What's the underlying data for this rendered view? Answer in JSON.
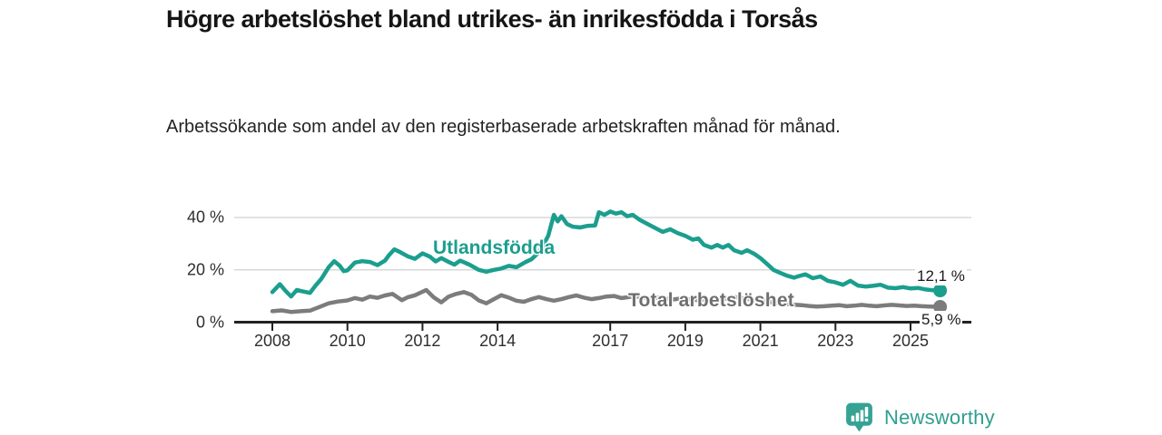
{
  "title": "Högre arbetslöshet bland utrikes- än inrikesfödda i Torsås",
  "subtitle": "Arbetssökande som andel av den registerbaserade arbetskraften månad för månad.",
  "branding": {
    "logo_text": "Newsworthy",
    "brand_color": "#2f9e90"
  },
  "chart_data": {
    "type": "line",
    "title": "Högre arbetslöshet bland utrikes- än inrikesfödda i Torsås",
    "subtitle": "Arbetssökande som andel av den registerbaserade arbetskraften månad för månad.",
    "unit": "%",
    "grid": true,
    "x_axis": {
      "ticks": [
        2008,
        2010,
        2012,
        2014,
        2017,
        2019,
        2021,
        2023,
        2025
      ],
      "tick_labels": [
        "2008",
        "2010",
        "2012",
        "2014",
        "2017",
        "2019",
        "2021",
        "2023",
        "2025"
      ],
      "range_years": [
        2007.0,
        2026.6
      ]
    },
    "y_axis": {
      "ticks": [
        0,
        20,
        40
      ],
      "tick_labels": [
        "0 %",
        "20 %",
        "40 %"
      ],
      "gridlines": [
        20,
        40
      ],
      "range": [
        0,
        45
      ]
    },
    "colors": {
      "axis": "#222222",
      "gridline": "#d8d8d8",
      "tick_text": "#2e2e2e"
    },
    "series": [
      {
        "name": "Utlandsfödda",
        "color": "#1b9e8e",
        "end_label": "12,1 %",
        "end_value": 12.1,
        "points": [
          [
            2008.0,
            11.5
          ],
          [
            2008.2,
            14.5
          ],
          [
            2008.35,
            12.0
          ],
          [
            2008.5,
            9.8
          ],
          [
            2008.65,
            12.3
          ],
          [
            2008.8,
            11.8
          ],
          [
            2009.0,
            11.2
          ],
          [
            2009.15,
            14.0
          ],
          [
            2009.3,
            16.5
          ],
          [
            2009.5,
            21.0
          ],
          [
            2009.65,
            23.3
          ],
          [
            2009.8,
            21.5
          ],
          [
            2009.9,
            19.5
          ],
          [
            2010.0,
            19.8
          ],
          [
            2010.2,
            22.8
          ],
          [
            2010.4,
            23.3
          ],
          [
            2010.6,
            23.0
          ],
          [
            2010.8,
            21.8
          ],
          [
            2011.0,
            23.5
          ],
          [
            2011.1,
            25.5
          ],
          [
            2011.25,
            27.8
          ],
          [
            2011.4,
            26.8
          ],
          [
            2011.6,
            25.2
          ],
          [
            2011.8,
            24.2
          ],
          [
            2012.0,
            26.3
          ],
          [
            2012.2,
            25.0
          ],
          [
            2012.35,
            23.2
          ],
          [
            2012.5,
            24.5
          ],
          [
            2012.7,
            23.0
          ],
          [
            2012.85,
            22.0
          ],
          [
            2013.0,
            23.5
          ],
          [
            2013.25,
            22.0
          ],
          [
            2013.5,
            20.0
          ],
          [
            2013.7,
            19.3
          ],
          [
            2013.9,
            20.0
          ],
          [
            2014.1,
            20.5
          ],
          [
            2014.3,
            21.5
          ],
          [
            2014.5,
            21.0
          ],
          [
            2014.75,
            23.0
          ],
          [
            2014.9,
            24.0
          ],
          [
            2015.05,
            26.0
          ],
          [
            2015.2,
            29.0
          ],
          [
            2015.35,
            33.0
          ],
          [
            2015.5,
            41.0
          ],
          [
            2015.6,
            38.5
          ],
          [
            2015.7,
            40.5
          ],
          [
            2015.85,
            37.5
          ],
          [
            2016.0,
            36.5
          ],
          [
            2016.2,
            36.2
          ],
          [
            2016.4,
            36.8
          ],
          [
            2016.6,
            37.0
          ],
          [
            2016.7,
            42.0
          ],
          [
            2016.85,
            41.0
          ],
          [
            2017.0,
            42.3
          ],
          [
            2017.15,
            41.5
          ],
          [
            2017.3,
            42.0
          ],
          [
            2017.45,
            40.5
          ],
          [
            2017.6,
            41.0
          ],
          [
            2017.8,
            39.0
          ],
          [
            2018.0,
            37.5
          ],
          [
            2018.2,
            36.0
          ],
          [
            2018.4,
            34.5
          ],
          [
            2018.6,
            35.5
          ],
          [
            2018.8,
            34.0
          ],
          [
            2019.0,
            33.0
          ],
          [
            2019.2,
            31.5
          ],
          [
            2019.35,
            32.0
          ],
          [
            2019.5,
            29.5
          ],
          [
            2019.7,
            28.5
          ],
          [
            2019.85,
            29.5
          ],
          [
            2020.0,
            28.5
          ],
          [
            2020.15,
            29.5
          ],
          [
            2020.3,
            27.5
          ],
          [
            2020.5,
            26.5
          ],
          [
            2020.65,
            27.5
          ],
          [
            2020.85,
            26.0
          ],
          [
            2021.0,
            24.5
          ],
          [
            2021.2,
            22.0
          ],
          [
            2021.35,
            20.0
          ],
          [
            2021.5,
            19.0
          ],
          [
            2021.7,
            17.8
          ],
          [
            2021.9,
            17.0
          ],
          [
            2022.0,
            17.5
          ],
          [
            2022.2,
            18.3
          ],
          [
            2022.4,
            16.8
          ],
          [
            2022.6,
            17.5
          ],
          [
            2022.8,
            15.8
          ],
          [
            2023.0,
            15.2
          ],
          [
            2023.2,
            14.3
          ],
          [
            2023.4,
            15.8
          ],
          [
            2023.6,
            14.0
          ],
          [
            2023.8,
            13.6
          ],
          [
            2024.0,
            13.9
          ],
          [
            2024.2,
            14.3
          ],
          [
            2024.4,
            13.2
          ],
          [
            2024.6,
            13.0
          ],
          [
            2024.8,
            13.4
          ],
          [
            2025.0,
            12.9
          ],
          [
            2025.2,
            13.1
          ],
          [
            2025.4,
            12.5
          ],
          [
            2025.6,
            12.2
          ],
          [
            2025.79,
            12.1
          ]
        ]
      },
      {
        "name": "Total arbetslöshet",
        "color": "#7c7c7c",
        "end_label": "5,9 %",
        "end_value": 5.9,
        "points": [
          [
            2008.0,
            4.2
          ],
          [
            2008.25,
            4.5
          ],
          [
            2008.5,
            3.9
          ],
          [
            2008.75,
            4.2
          ],
          [
            2009.0,
            4.4
          ],
          [
            2009.25,
            5.8
          ],
          [
            2009.5,
            7.2
          ],
          [
            2009.75,
            7.9
          ],
          [
            2010.0,
            8.3
          ],
          [
            2010.2,
            9.2
          ],
          [
            2010.4,
            8.6
          ],
          [
            2010.6,
            9.8
          ],
          [
            2010.8,
            9.3
          ],
          [
            2011.0,
            10.2
          ],
          [
            2011.2,
            10.8
          ],
          [
            2011.45,
            8.4
          ],
          [
            2011.6,
            9.5
          ],
          [
            2011.8,
            10.3
          ],
          [
            2012.1,
            12.3
          ],
          [
            2012.3,
            9.5
          ],
          [
            2012.5,
            7.6
          ],
          [
            2012.7,
            9.8
          ],
          [
            2012.9,
            10.8
          ],
          [
            2013.1,
            11.5
          ],
          [
            2013.3,
            10.5
          ],
          [
            2013.5,
            8.3
          ],
          [
            2013.7,
            7.2
          ],
          [
            2013.9,
            8.8
          ],
          [
            2014.1,
            10.3
          ],
          [
            2014.3,
            9.4
          ],
          [
            2014.5,
            8.2
          ],
          [
            2014.7,
            7.8
          ],
          [
            2014.9,
            8.8
          ],
          [
            2015.1,
            9.6
          ],
          [
            2015.3,
            8.8
          ],
          [
            2015.5,
            8.2
          ],
          [
            2015.7,
            8.8
          ],
          [
            2015.9,
            9.6
          ],
          [
            2016.1,
            10.2
          ],
          [
            2016.3,
            9.4
          ],
          [
            2016.5,
            8.8
          ],
          [
            2016.7,
            9.2
          ],
          [
            2016.9,
            9.8
          ],
          [
            2017.1,
            10.0
          ],
          [
            2017.3,
            9.2
          ],
          [
            2017.5,
            9.6
          ],
          [
            2017.7,
            9.8
          ],
          [
            2017.9,
            9.3
          ],
          [
            2018.1,
            9.0
          ],
          [
            2018.3,
            9.5
          ],
          [
            2018.5,
            9.0
          ],
          [
            2018.7,
            8.7
          ],
          [
            2018.9,
            9.1
          ],
          [
            2019.1,
            8.8
          ],
          [
            2019.3,
            8.4
          ],
          [
            2019.5,
            8.7
          ],
          [
            2019.7,
            8.3
          ],
          [
            2019.9,
            8.6
          ],
          [
            2020.1,
            9.0
          ],
          [
            2020.3,
            9.6
          ],
          [
            2020.5,
            9.2
          ],
          [
            2020.7,
            8.8
          ],
          [
            2020.9,
            8.4
          ],
          [
            2021.1,
            8.0
          ],
          [
            2021.3,
            7.6
          ],
          [
            2021.5,
            7.2
          ],
          [
            2021.7,
            6.9
          ],
          [
            2021.9,
            6.7
          ],
          [
            2022.1,
            6.5
          ],
          [
            2022.3,
            6.2
          ],
          [
            2022.5,
            6.0
          ],
          [
            2022.7,
            6.1
          ],
          [
            2022.9,
            6.3
          ],
          [
            2023.1,
            6.5
          ],
          [
            2023.3,
            6.1
          ],
          [
            2023.5,
            6.3
          ],
          [
            2023.7,
            6.6
          ],
          [
            2023.9,
            6.3
          ],
          [
            2024.1,
            6.1
          ],
          [
            2024.3,
            6.4
          ],
          [
            2024.5,
            6.6
          ],
          [
            2024.7,
            6.4
          ],
          [
            2024.9,
            6.2
          ],
          [
            2025.1,
            6.3
          ],
          [
            2025.3,
            6.1
          ],
          [
            2025.5,
            6.0
          ],
          [
            2025.79,
            5.9
          ]
        ]
      }
    ]
  }
}
